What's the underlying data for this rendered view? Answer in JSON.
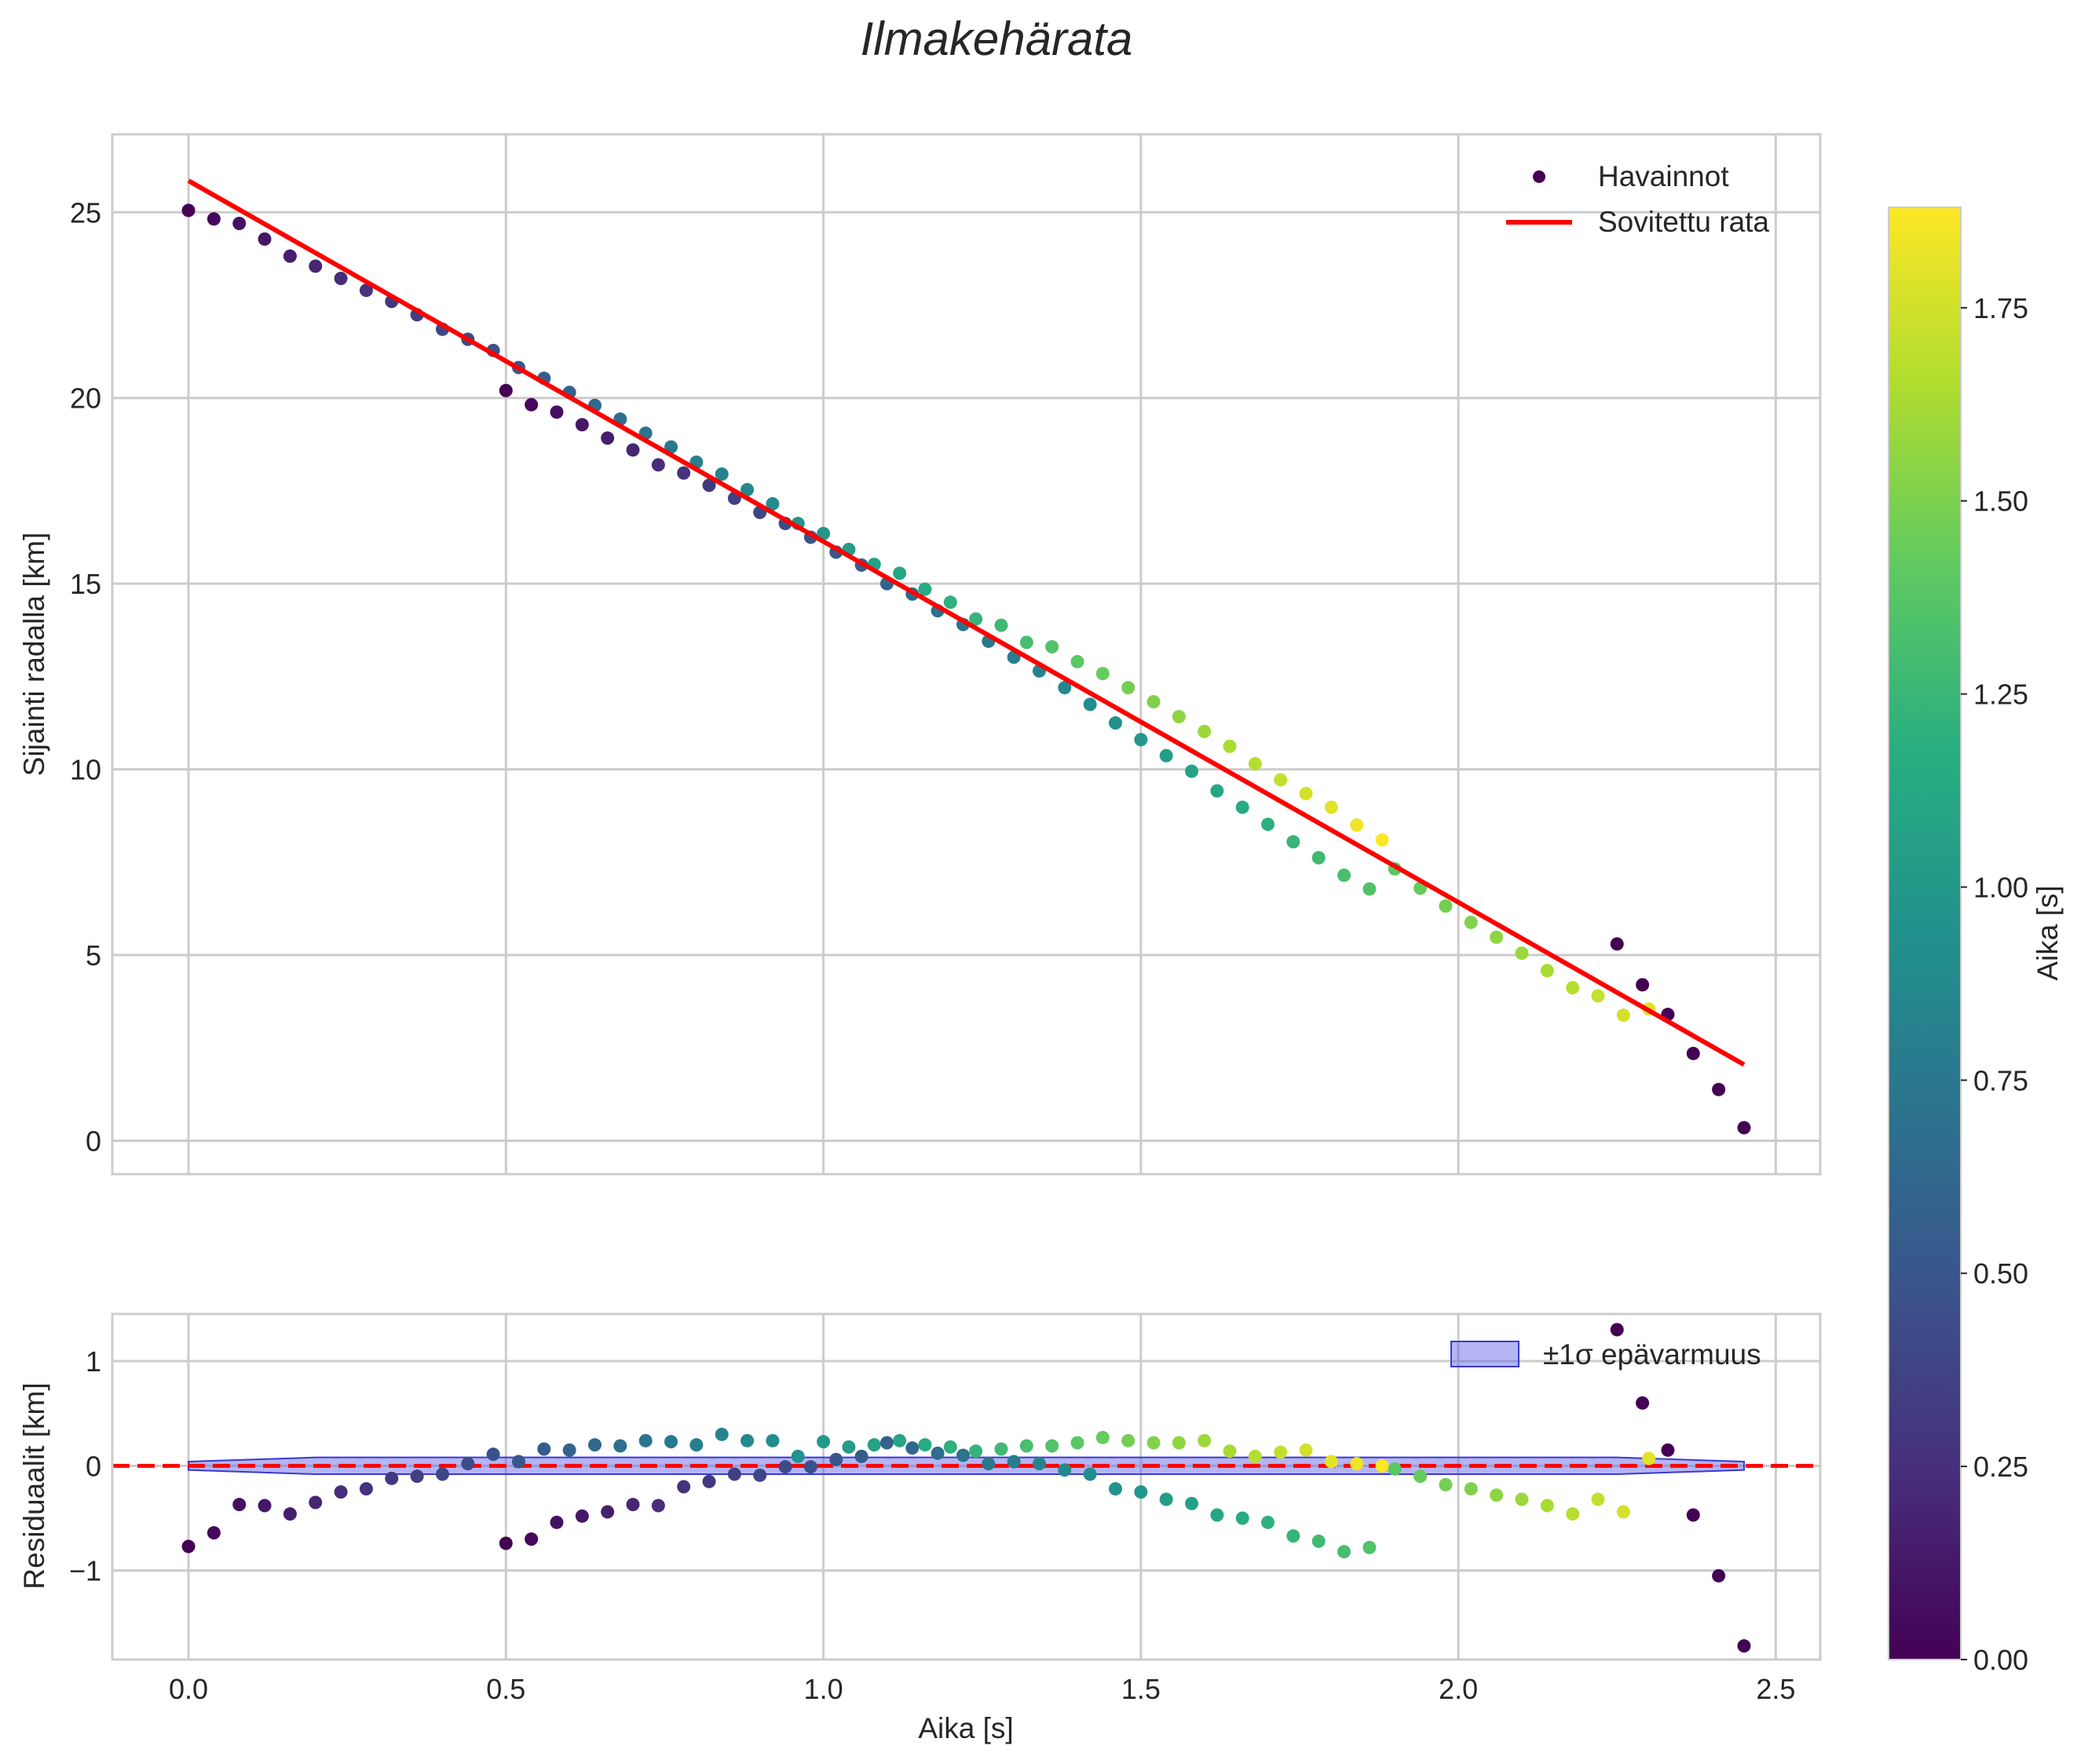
{
  "chart_data": {
    "title": "Ilmakehärata",
    "panels": [
      {
        "type": "scatter",
        "name": "trajectory",
        "xlabel": "",
        "ylabel": "Sijainti radalla [km]",
        "xlim": [
          -0.12,
          2.57
        ],
        "ylim": [
          -0.9,
          27.1
        ],
        "xticks": [
          0.0,
          0.5,
          1.0,
          1.5,
          2.0,
          2.5
        ],
        "yticks": [
          0,
          5,
          10,
          15,
          20,
          25
        ],
        "ytick_labels": [
          "0",
          "5",
          "10",
          "15",
          "20",
          "25"
        ],
        "grid": true,
        "legend": "top-right",
        "series": [
          {
            "name": "Havainnot",
            "kind": "scatter",
            "color_by": "Aika [s]",
            "x": [
              0.0,
              0.04,
              0.08,
              0.12,
              0.16,
              0.2,
              0.24,
              0.28,
              0.32,
              0.36,
              0.4,
              0.44,
              0.48,
              0.52,
              0.56,
              0.6,
              0.64,
              0.68,
              0.72,
              0.76,
              0.8,
              0.84,
              0.88,
              0.92,
              0.96,
              1.0,
              1.04,
              1.08,
              1.12,
              1.16,
              1.2,
              1.24,
              1.28,
              1.32,
              1.36,
              1.4,
              1.44,
              1.48,
              1.52,
              1.56,
              1.6,
              1.64,
              1.68,
              1.72,
              1.76,
              1.8,
              1.84,
              1.88,
              0.5,
              0.54,
              0.58,
              0.62,
              0.66,
              0.7,
              0.74,
              0.78,
              0.82,
              0.86,
              0.9,
              0.94,
              0.98,
              1.02,
              1.06,
              1.1,
              1.14,
              1.18,
              1.22,
              1.26,
              1.3,
              1.34,
              1.38,
              1.42,
              1.46,
              1.5,
              1.54,
              1.58,
              1.62,
              1.66,
              1.7,
              1.74,
              1.78,
              1.82,
              1.86,
              1.9,
              1.94,
              1.98,
              2.02,
              2.06,
              2.1,
              2.14,
              2.18,
              2.22,
              2.26,
              2.3,
              2.25,
              2.29,
              2.33,
              2.37,
              2.41,
              2.45
            ],
            "y": [
              25.05,
              24.82,
              24.7,
              24.28,
              23.82,
              23.55,
              23.22,
              22.9,
              22.6,
              22.24,
              21.85,
              21.58,
              21.28,
              20.82,
              20.53,
              20.15,
              19.8,
              19.43,
              19.05,
              18.68,
              18.27,
              17.95,
              17.53,
              17.15,
              16.62,
              16.35,
              15.92,
              15.52,
              15.28,
              14.85,
              14.5,
              14.05,
              13.88,
              13.42,
              13.3,
              12.9,
              12.58,
              12.2,
              11.82,
              11.42,
              11.02,
              10.62,
              10.15,
              9.72,
              9.35,
              8.98,
              8.5,
              8.1,
              20.2,
              19.82,
              19.62,
              19.28,
              18.92,
              18.6,
              18.2,
              17.98,
              17.65,
              17.3,
              16.92,
              16.62,
              16.25,
              15.85,
              15.5,
              15.0,
              14.72,
              14.27,
              13.9,
              13.45,
              13.02,
              12.65,
              12.2,
              11.75,
              11.25,
              10.8,
              10.37,
              9.95,
              9.42,
              8.98,
              8.52,
              8.05,
              7.62,
              7.15,
              6.78,
              7.32,
              6.8,
              6.32,
              5.88,
              5.48,
              5.05,
              4.58,
              4.12,
              3.9,
              3.38,
              3.55,
              5.3,
              4.2,
              3.4,
              2.35,
              1.38,
              0.35
            ],
            "c": [
              0.0,
              0.04,
              0.08,
              0.12,
              0.16,
              0.2,
              0.24,
              0.28,
              0.32,
              0.36,
              0.4,
              0.44,
              0.48,
              0.52,
              0.56,
              0.6,
              0.64,
              0.68,
              0.72,
              0.76,
              0.8,
              0.84,
              0.88,
              0.92,
              0.96,
              1.0,
              1.04,
              1.08,
              1.12,
              1.16,
              1.2,
              1.24,
              1.28,
              1.32,
              1.36,
              1.4,
              1.44,
              1.48,
              1.52,
              1.56,
              1.6,
              1.64,
              1.68,
              1.72,
              1.76,
              1.8,
              1.84,
              1.88,
              0.0,
              0.04,
              0.08,
              0.12,
              0.16,
              0.2,
              0.24,
              0.28,
              0.32,
              0.36,
              0.4,
              0.44,
              0.48,
              0.52,
              0.56,
              0.6,
              0.64,
              0.68,
              0.72,
              0.76,
              0.8,
              0.84,
              0.88,
              0.92,
              0.96,
              1.0,
              1.04,
              1.08,
              1.12,
              1.16,
              1.2,
              1.24,
              1.28,
              1.32,
              1.36,
              1.4,
              1.44,
              1.48,
              1.52,
              1.56,
              1.6,
              1.64,
              1.68,
              1.72,
              1.76,
              1.8,
              0.0,
              0.0,
              0.0,
              0.0,
              0.0,
              0.0
            ]
          },
          {
            "name": "Sovitettu rata",
            "kind": "line",
            "color": "#ff0000",
            "x": [
              0.0,
              2.45
            ],
            "y": [
              25.85,
              2.05
            ]
          }
        ]
      },
      {
        "type": "scatter",
        "name": "residuals",
        "xlabel": "Aika [s]",
        "ylabel": "Residuaalit [km]",
        "xlim": [
          -0.12,
          2.57
        ],
        "ylim": [
          -1.85,
          1.45
        ],
        "xticks": [
          0.0,
          0.5,
          1.0,
          1.5,
          2.0,
          2.5
        ],
        "xtick_labels": [
          "0.0",
          "0.5",
          "1.0",
          "1.5",
          "2.0",
          "2.5"
        ],
        "yticks": [
          -1,
          0,
          1
        ],
        "ytick_labels": [
          "−1",
          "0",
          "1"
        ],
        "grid": true,
        "legend": "top-right",
        "reference_line": {
          "y": 0,
          "style": "dashed",
          "color": "#ff0000"
        },
        "band": {
          "name": "±1σ epävarmuus",
          "color": "#5a5ae6",
          "x": [
            0.0,
            0.2,
            2.25,
            2.45
          ],
          "upper": [
            0.04,
            0.08,
            0.08,
            0.04
          ],
          "lower": [
            -0.04,
            -0.08,
            -0.08,
            -0.04
          ]
        },
        "series": [
          {
            "name": "Residuaalit",
            "kind": "scatter",
            "x": [
              0.0,
              0.04,
              0.08,
              0.12,
              0.16,
              0.2,
              0.24,
              0.28,
              0.32,
              0.36,
              0.4,
              0.44,
              0.48,
              0.52,
              0.56,
              0.6,
              0.64,
              0.68,
              0.72,
              0.76,
              0.8,
              0.84,
              0.88,
              0.92,
              0.96,
              1.0,
              1.04,
              1.08,
              1.12,
              1.16,
              1.2,
              1.24,
              1.28,
              1.32,
              1.36,
              1.4,
              1.44,
              1.48,
              1.52,
              1.56,
              1.6,
              1.64,
              1.68,
              1.72,
              1.76,
              1.8,
              1.84,
              1.88,
              0.5,
              0.54,
              0.58,
              0.62,
              0.66,
              0.7,
              0.74,
              0.78,
              0.82,
              0.86,
              0.9,
              0.94,
              0.98,
              1.02,
              1.06,
              1.1,
              1.14,
              1.18,
              1.22,
              1.26,
              1.3,
              1.34,
              1.38,
              1.42,
              1.46,
              1.5,
              1.54,
              1.58,
              1.62,
              1.66,
              1.7,
              1.74,
              1.78,
              1.82,
              1.86,
              1.9,
              1.94,
              1.98,
              2.02,
              2.06,
              2.1,
              2.14,
              2.18,
              2.22,
              2.26,
              2.3,
              2.25,
              2.29,
              2.33,
              2.37,
              2.41,
              2.45
            ],
            "y": [
              -0.77,
              -0.64,
              -0.37,
              -0.38,
              -0.46,
              -0.35,
              -0.25,
              -0.22,
              -0.12,
              -0.1,
              -0.08,
              0.02,
              0.11,
              0.04,
              0.16,
              0.15,
              0.2,
              0.19,
              0.24,
              0.23,
              0.2,
              0.3,
              0.24,
              0.24,
              0.09,
              0.23,
              0.18,
              0.2,
              0.24,
              0.2,
              0.18,
              0.14,
              0.16,
              0.19,
              0.19,
              0.22,
              0.27,
              0.24,
              0.22,
              0.22,
              0.24,
              0.14,
              0.09,
              0.13,
              0.15,
              0.04,
              0.02,
              0.0,
              -0.74,
              -0.7,
              -0.54,
              -0.48,
              -0.44,
              -0.37,
              -0.38,
              -0.2,
              -0.15,
              -0.08,
              -0.09,
              -0.01,
              -0.01,
              0.06,
              0.09,
              0.22,
              0.17,
              0.12,
              0.1,
              0.02,
              0.04,
              0.02,
              -0.04,
              -0.08,
              -0.22,
              -0.25,
              -0.32,
              -0.36,
              -0.47,
              -0.5,
              -0.54,
              -0.67,
              -0.72,
              -0.82,
              -0.78,
              -0.03,
              -0.1,
              -0.18,
              -0.22,
              -0.28,
              -0.32,
              -0.38,
              -0.46,
              -0.32,
              -0.44,
              0.07,
              1.3,
              0.6,
              0.15,
              -0.47,
              -1.05,
              -1.72
            ],
            "c": [
              0.0,
              0.04,
              0.08,
              0.12,
              0.16,
              0.2,
              0.24,
              0.28,
              0.32,
              0.36,
              0.4,
              0.44,
              0.48,
              0.52,
              0.56,
              0.6,
              0.64,
              0.68,
              0.72,
              0.76,
              0.8,
              0.84,
              0.88,
              0.92,
              0.96,
              1.0,
              1.04,
              1.08,
              1.12,
              1.16,
              1.2,
              1.24,
              1.28,
              1.32,
              1.36,
              1.4,
              1.44,
              1.48,
              1.52,
              1.56,
              1.6,
              1.64,
              1.68,
              1.72,
              1.76,
              1.8,
              1.84,
              1.88,
              0.0,
              0.04,
              0.08,
              0.12,
              0.16,
              0.2,
              0.24,
              0.28,
              0.32,
              0.36,
              0.4,
              0.44,
              0.48,
              0.52,
              0.56,
              0.6,
              0.64,
              0.68,
              0.72,
              0.76,
              0.8,
              0.84,
              0.88,
              0.92,
              0.96,
              1.0,
              1.04,
              1.08,
              1.12,
              1.16,
              1.2,
              1.24,
              1.28,
              1.32,
              1.36,
              1.4,
              1.44,
              1.48,
              1.52,
              1.56,
              1.6,
              1.64,
              1.68,
              1.72,
              1.76,
              1.8,
              0.0,
              0.0,
              0.0,
              0.0,
              0.0,
              0.0
            ]
          }
        ]
      }
    ],
    "colorbar": {
      "label": "Aika [s]",
      "colormap": "viridis",
      "range": [
        0.0,
        1.88
      ],
      "ticks": [
        0.0,
        0.25,
        0.5,
        0.75,
        1.0,
        1.25,
        1.5,
        1.75
      ],
      "tick_labels": [
        "0.00",
        "0.25",
        "0.50",
        "0.75",
        "1.00",
        "1.25",
        "1.50",
        "1.75"
      ]
    },
    "legend_entries": {
      "observations": "Havainnot",
      "fit": "Sovitettu rata",
      "band": "±1σ epävarmuus"
    }
  }
}
